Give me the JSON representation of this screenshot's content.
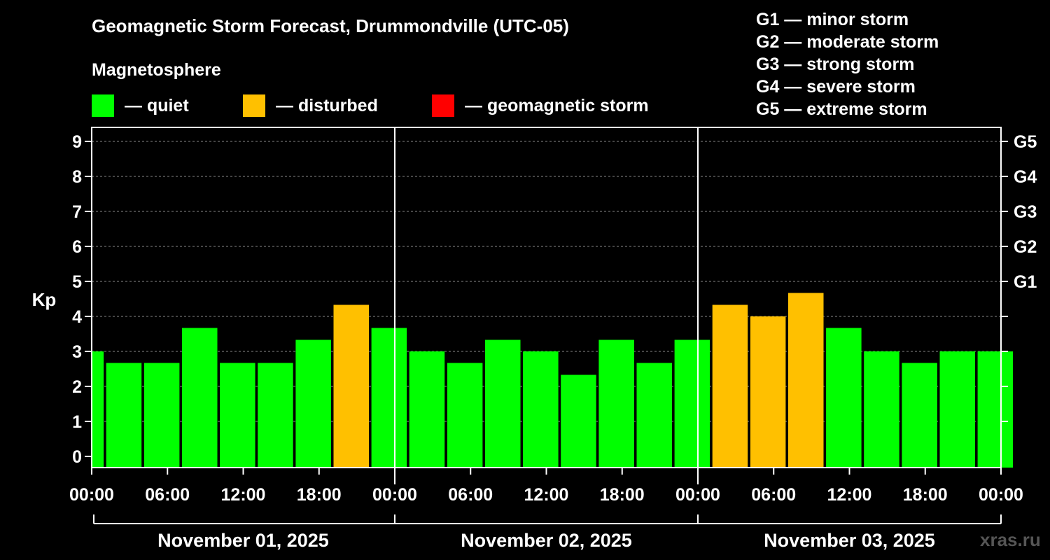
{
  "header": {
    "title": "Geomagnetic Storm Forecast, Drummondville (UTC-05)",
    "subtitle": "Magnetosphere"
  },
  "legend": [
    {
      "label": "— quiet",
      "color": "#00ff00"
    },
    {
      "label": "— disturbed",
      "color": "#ffc000"
    },
    {
      "label": "— geomagnetic storm",
      "color": "#ff0000"
    }
  ],
  "storm_scale": [
    "G1 — minor storm",
    "G2 — moderate storm",
    "G3 — strong storm",
    "G4 — severe storm",
    "G5 — extreme storm"
  ],
  "credit": "xras.ru",
  "chart_data": {
    "type": "bar",
    "ylabel": "Kp",
    "ylim": [
      0,
      9
    ],
    "y_ticks": [
      0,
      1,
      2,
      3,
      4,
      5,
      6,
      7,
      8,
      9
    ],
    "right_axis_labels": [
      {
        "kp": 5,
        "label": "G1"
      },
      {
        "kp": 6,
        "label": "G2"
      },
      {
        "kp": 7,
        "label": "G3"
      },
      {
        "kp": 8,
        "label": "G4"
      },
      {
        "kp": 9,
        "label": "G5"
      }
    ],
    "x_tick_labels": [
      "00:00",
      "06:00",
      "12:00",
      "18:00",
      "00:00",
      "06:00",
      "12:00",
      "18:00",
      "00:00",
      "06:00",
      "12:00",
      "18:00",
      "00:00"
    ],
    "days": [
      "November 01, 2025",
      "November 02, 2025",
      "November 03, 2025"
    ],
    "grid": "dashed horizontal",
    "colors": {
      "quiet": "#00ff00",
      "disturbed": "#ffc000",
      "storm": "#ff0000"
    },
    "series": [
      {
        "values": [
          3.0,
          2.67,
          2.67,
          3.67,
          2.67,
          2.67,
          3.33,
          4.33,
          3.67,
          3.0,
          2.67,
          3.33,
          3.0,
          2.33,
          3.33,
          2.67,
          3.33,
          4.33,
          4.0,
          4.67,
          3.67,
          3.0,
          2.67,
          3.0,
          3.0
        ]
      }
    ]
  }
}
